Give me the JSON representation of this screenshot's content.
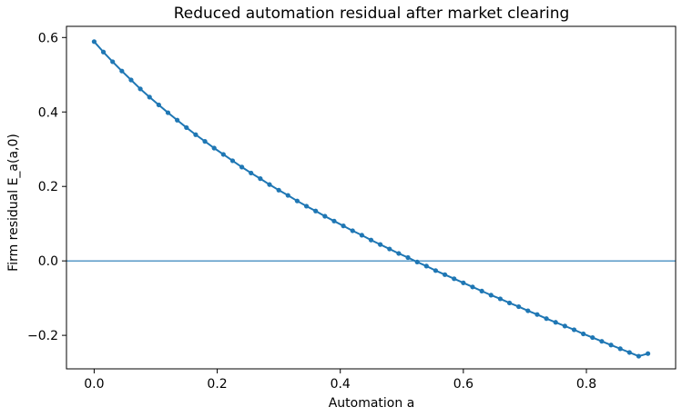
{
  "chart_data": {
    "type": "line",
    "title": "Reduced automation residual after market clearing",
    "xlabel": "Automation a",
    "ylabel": "Firm residual E_a(a,0)",
    "xlim": [
      -0.045,
      0.945
    ],
    "ylim": [
      -0.29,
      0.63
    ],
    "xticks": [
      0.0,
      0.2,
      0.4,
      0.6,
      0.8
    ],
    "xtick_labels": [
      "0.0",
      "0.2",
      "0.4",
      "0.6",
      "0.8"
    ],
    "yticks": [
      -0.2,
      0.0,
      0.2,
      0.4,
      0.6
    ],
    "ytick_labels": [
      "−0.2",
      "0.0",
      "0.2",
      "0.4",
      "0.6"
    ],
    "grid": false,
    "reference_line": {
      "y": 0.0,
      "color": "#1f77b4"
    },
    "series": [
      {
        "color": "#1f77b4",
        "marker": "circle",
        "x": [
          0.0,
          0.015,
          0.03,
          0.045,
          0.06,
          0.075,
          0.09,
          0.105,
          0.12,
          0.135,
          0.15,
          0.165,
          0.18,
          0.195,
          0.21,
          0.225,
          0.24,
          0.255,
          0.27,
          0.285,
          0.3,
          0.315,
          0.33,
          0.345,
          0.36,
          0.375,
          0.39,
          0.405,
          0.42,
          0.435,
          0.45,
          0.465,
          0.48,
          0.495,
          0.51,
          0.525,
          0.54,
          0.555,
          0.57,
          0.585,
          0.6,
          0.615,
          0.63,
          0.645,
          0.66,
          0.675,
          0.69,
          0.705,
          0.72,
          0.735,
          0.75,
          0.765,
          0.78,
          0.795,
          0.81,
          0.825,
          0.84,
          0.855,
          0.87,
          0.885,
          0.9
        ],
        "y": [
          0.589,
          0.561,
          0.535,
          0.51,
          0.486,
          0.462,
          0.44,
          0.419,
          0.398,
          0.378,
          0.358,
          0.339,
          0.321,
          0.303,
          0.286,
          0.269,
          0.252,
          0.236,
          0.221,
          0.205,
          0.19,
          0.176,
          0.161,
          0.147,
          0.134,
          0.12,
          0.107,
          0.094,
          0.081,
          0.069,
          0.056,
          0.044,
          0.032,
          0.02,
          0.009,
          -0.003,
          -0.014,
          -0.026,
          -0.037,
          -0.048,
          -0.059,
          -0.07,
          -0.081,
          -0.092,
          -0.102,
          -0.113,
          -0.123,
          -0.134,
          -0.144,
          -0.155,
          -0.165,
          -0.175,
          -0.185,
          -0.196,
          -0.206,
          -0.216,
          -0.226,
          -0.236,
          -0.246,
          -0.256,
          -0.249
        ]
      }
    ]
  }
}
